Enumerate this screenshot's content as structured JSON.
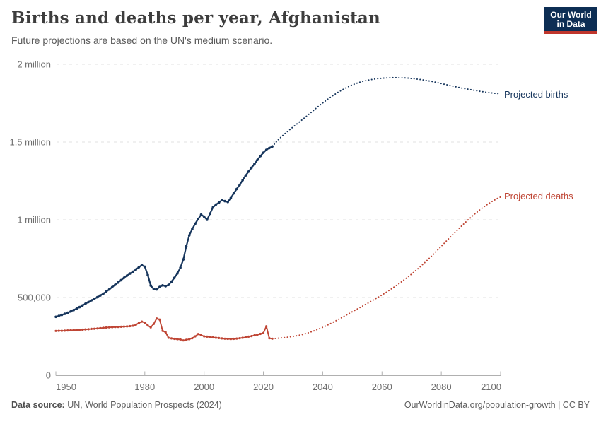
{
  "header": {
    "title": "Births and deaths per year, Afghanistan",
    "subtitle": "Future projections are based on the UN's medium scenario."
  },
  "logo": {
    "line1": "Our World",
    "line2": "in Data",
    "bg_color": "#0d2e54",
    "accent_color": "#c0362c"
  },
  "footer": {
    "source_label": "Data source:",
    "source_text": "UN, World Population Prospects (2024)",
    "right_text": "OurWorldinData.org/population-growth | CC BY"
  },
  "chart_data": {
    "type": "line",
    "title": "Births and deaths per year, Afghanistan",
    "subtitle": "Future projections are based on the UN's medium scenario.",
    "xlabel": "",
    "ylabel": "",
    "x_range": [
      1950,
      2100
    ],
    "y_range": [
      0,
      2000000
    ],
    "x_ticks": [
      1950,
      1980,
      2000,
      2020,
      2040,
      2060,
      2080,
      2100
    ],
    "y_ticks": [
      {
        "value": 0,
        "label": "0"
      },
      {
        "value": 500000,
        "label": "500,000"
      },
      {
        "value": 1000000,
        "label": "1 million"
      },
      {
        "value": 1500000,
        "label": "1.5 million"
      },
      {
        "value": 2000000,
        "label": "2 million"
      }
    ],
    "grid": "horizontal dashed",
    "legend_position": "right end-of-line labels",
    "style_note": "solid beaded line = observed 1950-2023, dotted line = UN projection 2024-2100",
    "series": [
      {
        "name": "Projected births",
        "color": "#16355c",
        "historical": [
          [
            1950,
            376000
          ],
          [
            1951,
            382000
          ],
          [
            1952,
            388000
          ],
          [
            1953,
            395000
          ],
          [
            1954,
            402000
          ],
          [
            1955,
            410000
          ],
          [
            1956,
            419000
          ],
          [
            1957,
            428000
          ],
          [
            1958,
            438000
          ],
          [
            1959,
            449000
          ],
          [
            1960,
            460000
          ],
          [
            1961,
            471000
          ],
          [
            1962,
            482000
          ],
          [
            1963,
            492000
          ],
          [
            1964,
            502000
          ],
          [
            1965,
            513000
          ],
          [
            1966,
            525000
          ],
          [
            1967,
            538000
          ],
          [
            1968,
            552000
          ],
          [
            1969,
            567000
          ],
          [
            1970,
            582000
          ],
          [
            1971,
            597000
          ],
          [
            1972,
            612000
          ],
          [
            1973,
            627000
          ],
          [
            1974,
            641000
          ],
          [
            1975,
            654000
          ],
          [
            1976,
            666000
          ],
          [
            1977,
            680000
          ],
          [
            1978,
            695000
          ],
          [
            1979,
            708000
          ],
          [
            1980,
            698000
          ],
          [
            1981,
            645000
          ],
          [
            1982,
            577000
          ],
          [
            1983,
            555000
          ],
          [
            1984,
            552000
          ],
          [
            1985,
            568000
          ],
          [
            1986,
            578000
          ],
          [
            1987,
            573000
          ],
          [
            1988,
            581000
          ],
          [
            1989,
            602000
          ],
          [
            1990,
            627000
          ],
          [
            1991,
            655000
          ],
          [
            1992,
            692000
          ],
          [
            1993,
            745000
          ],
          [
            1994,
            830000
          ],
          [
            1995,
            900000
          ],
          [
            1996,
            940000
          ],
          [
            1997,
            975000
          ],
          [
            1998,
            1005000
          ],
          [
            1999,
            1033000
          ],
          [
            2000,
            1020000
          ],
          [
            2001,
            1000000
          ],
          [
            2002,
            1040000
          ],
          [
            2003,
            1080000
          ],
          [
            2004,
            1098000
          ],
          [
            2005,
            1110000
          ],
          [
            2006,
            1127000
          ],
          [
            2007,
            1120000
          ],
          [
            2008,
            1115000
          ],
          [
            2009,
            1140000
          ],
          [
            2010,
            1170000
          ],
          [
            2011,
            1198000
          ],
          [
            2012,
            1225000
          ],
          [
            2013,
            1255000
          ],
          [
            2014,
            1285000
          ],
          [
            2015,
            1310000
          ],
          [
            2016,
            1335000
          ],
          [
            2017,
            1360000
          ],
          [
            2018,
            1385000
          ],
          [
            2019,
            1410000
          ],
          [
            2020,
            1432000
          ],
          [
            2021,
            1450000
          ],
          [
            2022,
            1462000
          ],
          [
            2023,
            1472000
          ]
        ],
        "projected": [
          [
            2023,
            1472000
          ],
          [
            2025,
            1515000
          ],
          [
            2027,
            1550000
          ],
          [
            2029,
            1582000
          ],
          [
            2031,
            1612000
          ],
          [
            2033,
            1642000
          ],
          [
            2035,
            1673000
          ],
          [
            2037,
            1705000
          ],
          [
            2039,
            1737000
          ],
          [
            2041,
            1766000
          ],
          [
            2043,
            1793000
          ],
          [
            2045,
            1818000
          ],
          [
            2047,
            1840000
          ],
          [
            2049,
            1859000
          ],
          [
            2051,
            1875000
          ],
          [
            2053,
            1888000
          ],
          [
            2055,
            1897000
          ],
          [
            2057,
            1904000
          ],
          [
            2059,
            1909000
          ],
          [
            2061,
            1912000
          ],
          [
            2063,
            1914000
          ],
          [
            2065,
            1914000
          ],
          [
            2067,
            1913000
          ],
          [
            2069,
            1911000
          ],
          [
            2071,
            1907000
          ],
          [
            2073,
            1902000
          ],
          [
            2075,
            1896000
          ],
          [
            2077,
            1889000
          ],
          [
            2079,
            1881000
          ],
          [
            2081,
            1872000
          ],
          [
            2083,
            1863000
          ],
          [
            2085,
            1855000
          ],
          [
            2087,
            1847000
          ],
          [
            2089,
            1840000
          ],
          [
            2091,
            1833000
          ],
          [
            2093,
            1827000
          ],
          [
            2095,
            1821000
          ],
          [
            2097,
            1816000
          ],
          [
            2099,
            1812000
          ],
          [
            2100,
            1810000
          ]
        ]
      },
      {
        "name": "Projected deaths",
        "color": "#bf4534",
        "historical": [
          [
            1950,
            285000
          ],
          [
            1951,
            286000
          ],
          [
            1952,
            286000
          ],
          [
            1953,
            287000
          ],
          [
            1954,
            288000
          ],
          [
            1955,
            289000
          ],
          [
            1956,
            290000
          ],
          [
            1957,
            291000
          ],
          [
            1958,
            292000
          ],
          [
            1959,
            293000
          ],
          [
            1960,
            295000
          ],
          [
            1961,
            296000
          ],
          [
            1962,
            298000
          ],
          [
            1963,
            299000
          ],
          [
            1964,
            301000
          ],
          [
            1965,
            303000
          ],
          [
            1966,
            305000
          ],
          [
            1967,
            307000
          ],
          [
            1968,
            308000
          ],
          [
            1969,
            309000
          ],
          [
            1970,
            310000
          ],
          [
            1971,
            311000
          ],
          [
            1972,
            312000
          ],
          [
            1973,
            313000
          ],
          [
            1974,
            314000
          ],
          [
            1975,
            316000
          ],
          [
            1976,
            318000
          ],
          [
            1977,
            325000
          ],
          [
            1978,
            336000
          ],
          [
            1979,
            345000
          ],
          [
            1980,
            338000
          ],
          [
            1981,
            320000
          ],
          [
            1982,
            308000
          ],
          [
            1983,
            330000
          ],
          [
            1984,
            365000
          ],
          [
            1985,
            358000
          ],
          [
            1986,
            286000
          ],
          [
            1987,
            277000
          ],
          [
            1988,
            241000
          ],
          [
            1989,
            237000
          ],
          [
            1990,
            234000
          ],
          [
            1991,
            232000
          ],
          [
            1992,
            230000
          ],
          [
            1993,
            224000
          ],
          [
            1994,
            228000
          ],
          [
            1995,
            232000
          ],
          [
            1996,
            238000
          ],
          [
            1997,
            250000
          ],
          [
            1998,
            265000
          ],
          [
            1999,
            258000
          ],
          [
            2000,
            250000
          ],
          [
            2001,
            248000
          ],
          [
            2002,
            246000
          ],
          [
            2003,
            243000
          ],
          [
            2004,
            241000
          ],
          [
            2005,
            239000
          ],
          [
            2006,
            237000
          ],
          [
            2007,
            235000
          ],
          [
            2008,
            234000
          ],
          [
            2009,
            233000
          ],
          [
            2010,
            234000
          ],
          [
            2011,
            236000
          ],
          [
            2012,
            238000
          ],
          [
            2013,
            241000
          ],
          [
            2014,
            244000
          ],
          [
            2015,
            248000
          ],
          [
            2016,
            252000
          ],
          [
            2017,
            257000
          ],
          [
            2018,
            261000
          ],
          [
            2019,
            266000
          ],
          [
            2020,
            272000
          ],
          [
            2021,
            315000
          ],
          [
            2022,
            238000
          ],
          [
            2023,
            235000
          ]
        ],
        "projected": [
          [
            2023,
            235000
          ],
          [
            2025,
            238000
          ],
          [
            2027,
            242000
          ],
          [
            2029,
            247000
          ],
          [
            2031,
            253000
          ],
          [
            2033,
            261000
          ],
          [
            2035,
            272000
          ],
          [
            2037,
            285000
          ],
          [
            2039,
            300000
          ],
          [
            2041,
            317000
          ],
          [
            2043,
            336000
          ],
          [
            2045,
            356000
          ],
          [
            2047,
            377000
          ],
          [
            2049,
            398000
          ],
          [
            2051,
            419000
          ],
          [
            2053,
            440000
          ],
          [
            2055,
            461000
          ],
          [
            2057,
            483000
          ],
          [
            2059,
            505000
          ],
          [
            2061,
            528000
          ],
          [
            2063,
            553000
          ],
          [
            2065,
            579000
          ],
          [
            2067,
            607000
          ],
          [
            2069,
            636000
          ],
          [
            2071,
            667000
          ],
          [
            2073,
            700000
          ],
          [
            2075,
            735000
          ],
          [
            2077,
            772000
          ],
          [
            2079,
            810000
          ],
          [
            2081,
            849000
          ],
          [
            2083,
            888000
          ],
          [
            2085,
            926000
          ],
          [
            2087,
            963000
          ],
          [
            2089,
            999000
          ],
          [
            2091,
            1033000
          ],
          [
            2093,
            1064000
          ],
          [
            2095,
            1092000
          ],
          [
            2097,
            1117000
          ],
          [
            2099,
            1138000
          ],
          [
            2100,
            1147000
          ]
        ]
      }
    ]
  }
}
